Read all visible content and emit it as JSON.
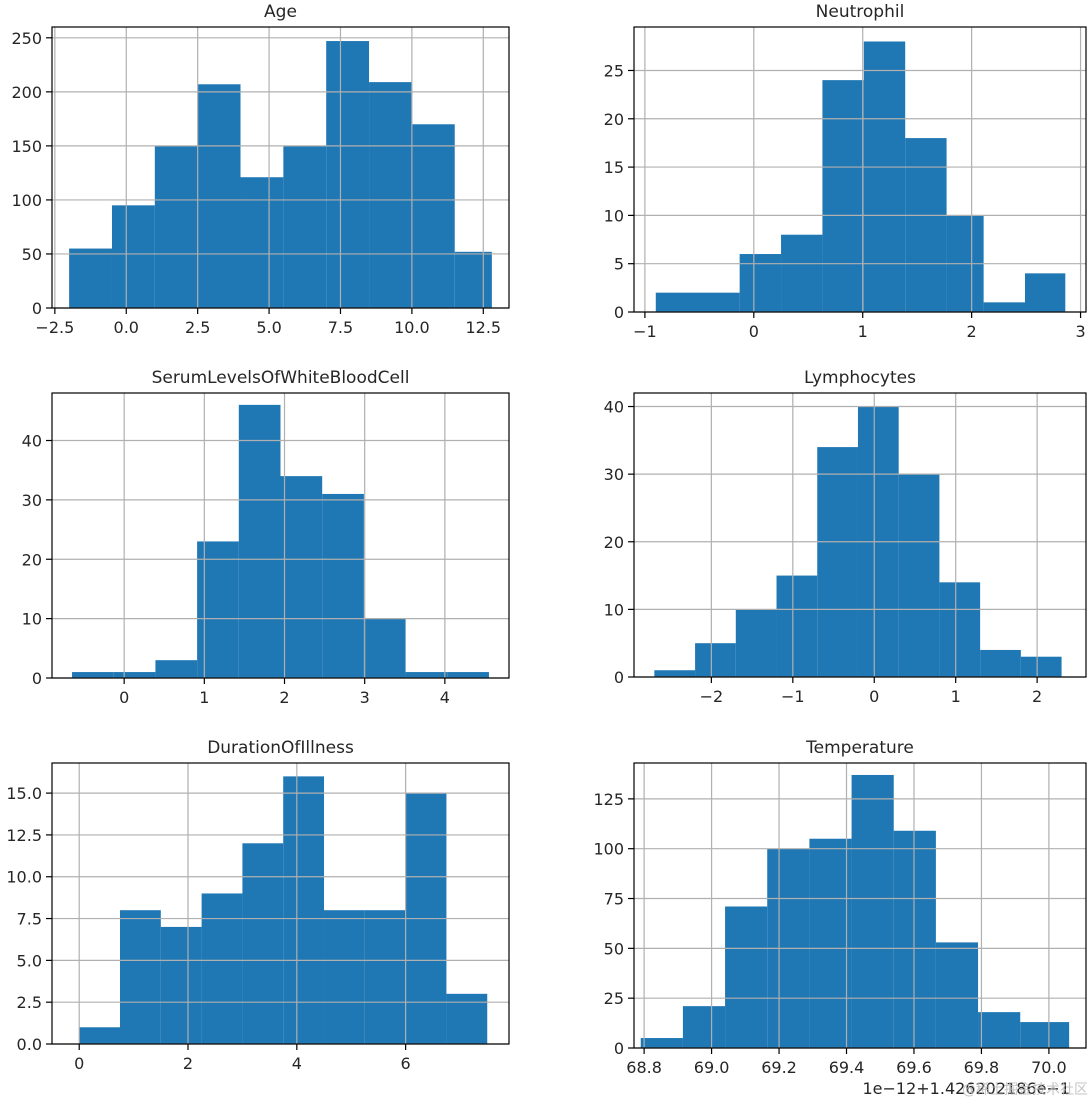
{
  "chart_data": [
    {
      "type": "bar",
      "title": "Age",
      "xlim": [
        -2.6,
        13.4
      ],
      "ylim": [
        0,
        260
      ],
      "xticks": [
        -2.5,
        0.0,
        2.5,
        5.0,
        7.5,
        10.0,
        12.5
      ],
      "xtick_labels": [
        "−2.5",
        "0.0",
        "2.5",
        "5.0",
        "7.5",
        "10.0",
        "12.5"
      ],
      "yticks": [
        0,
        50,
        100,
        150,
        200,
        250
      ],
      "ytick_labels": [
        "0",
        "50",
        "100",
        "150",
        "200",
        "250"
      ],
      "bin_edges": [
        -2.0,
        -0.5,
        1.0,
        2.5,
        4.0,
        5.5,
        7.0,
        8.5,
        10.0,
        11.5,
        12.8
      ],
      "counts": [
        55,
        95,
        150,
        207,
        121,
        150,
        247,
        209,
        170,
        52
      ]
    },
    {
      "type": "bar",
      "title": "Neutrophil",
      "xlim": [
        -1.1,
        3.05
      ],
      "ylim": [
        0,
        29.5
      ],
      "xticks": [
        -1,
        0,
        1,
        2,
        3
      ],
      "xtick_labels": [
        "−1",
        "0",
        "1",
        "2",
        "3"
      ],
      "yticks": [
        0,
        5,
        10,
        15,
        20,
        25
      ],
      "ytick_labels": [
        "0",
        "5",
        "10",
        "15",
        "20",
        "25"
      ],
      "bin_edges": [
        -0.9,
        -0.13,
        0.25,
        0.63,
        1.01,
        1.39,
        1.77,
        2.11,
        2.49,
        2.86
      ],
      "counts": [
        2,
        6,
        8,
        24,
        28,
        18,
        10,
        1,
        4
      ]
    },
    {
      "type": "bar",
      "title": "SerumLevelsOfWhiteBloodCell",
      "xlim": [
        -0.9,
        4.8
      ],
      "ylim": [
        0,
        48
      ],
      "xticks": [
        0,
        1,
        2,
        3,
        4
      ],
      "xtick_labels": [
        "0",
        "1",
        "2",
        "3",
        "4"
      ],
      "yticks": [
        0,
        10,
        20,
        30,
        40
      ],
      "ytick_labels": [
        "0",
        "10",
        "20",
        "30",
        "40"
      ],
      "bin_edges": [
        -0.65,
        -0.13,
        0.39,
        0.91,
        1.43,
        1.95,
        2.47,
        2.99,
        3.51,
        4.03,
        4.55
      ],
      "counts": [
        1,
        1,
        3,
        23,
        46,
        34,
        31,
        10,
        1,
        1
      ]
    },
    {
      "type": "bar",
      "title": "Lymphocytes",
      "xlim": [
        -2.95,
        2.6
      ],
      "ylim": [
        0,
        42
      ],
      "xticks": [
        -2,
        -1,
        0,
        1,
        2
      ],
      "xtick_labels": [
        "−2",
        "−1",
        "0",
        "1",
        "2"
      ],
      "yticks": [
        0,
        10,
        20,
        30,
        40
      ],
      "ytick_labels": [
        "0",
        "10",
        "20",
        "30",
        "40"
      ],
      "bin_edges": [
        -2.7,
        -2.2,
        -1.7,
        -1.2,
        -0.7,
        -0.2,
        0.3,
        0.8,
        1.3,
        1.8,
        2.3
      ],
      "counts": [
        1,
        5,
        10,
        15,
        34,
        40,
        30,
        14,
        4,
        3
      ]
    },
    {
      "type": "bar",
      "title": "DurationOfIllness",
      "xlim": [
        -0.5,
        7.9
      ],
      "ylim": [
        0,
        16.8
      ],
      "xticks": [
        0,
        2,
        4,
        6
      ],
      "xtick_labels": [
        "0",
        "2",
        "4",
        "6"
      ],
      "yticks": [
        0.0,
        2.5,
        5.0,
        7.5,
        10.0,
        12.5,
        15.0
      ],
      "ytick_labels": [
        "0.0",
        "2.5",
        "5.0",
        "7.5",
        "10.0",
        "12.5",
        "15.0"
      ],
      "bin_edges": [
        0.0,
        0.75,
        1.5,
        2.25,
        3.0,
        3.75,
        4.5,
        5.25,
        6.0,
        6.75,
        7.5
      ],
      "counts": [
        1,
        8,
        7,
        9,
        12,
        16,
        8,
        8,
        15,
        3
      ]
    },
    {
      "type": "bar",
      "title": "Temperature",
      "xlim": [
        68.77,
        70.11
      ],
      "ylim": [
        0,
        143
      ],
      "xticks": [
        68.8,
        69.0,
        69.2,
        69.4,
        69.6,
        69.8,
        70.0
      ],
      "xtick_labels": [
        "68.8",
        "69.0",
        "69.2",
        "69.4",
        "69.6",
        "69.8",
        "70.0"
      ],
      "yticks": [
        0,
        25,
        50,
        75,
        100,
        125
      ],
      "ytick_labels": [
        "0",
        "25",
        "50",
        "75",
        "100",
        "125"
      ],
      "bin_edges": [
        68.79,
        68.915,
        69.04,
        69.165,
        69.29,
        69.415,
        69.54,
        69.665,
        69.79,
        69.915,
        70.06
      ],
      "counts": [
        5,
        21,
        71,
        100,
        105,
        137,
        109,
        53,
        18,
        13
      ]
    }
  ],
  "temperature_offset_text": "1e−12+1.426202186e−1",
  "watermark_text": "@稀土掘金技术社区",
  "colors": {
    "bar": "#1f77b4",
    "grid": "#b0b0b0",
    "axis": "#000000",
    "text": "#262626"
  }
}
